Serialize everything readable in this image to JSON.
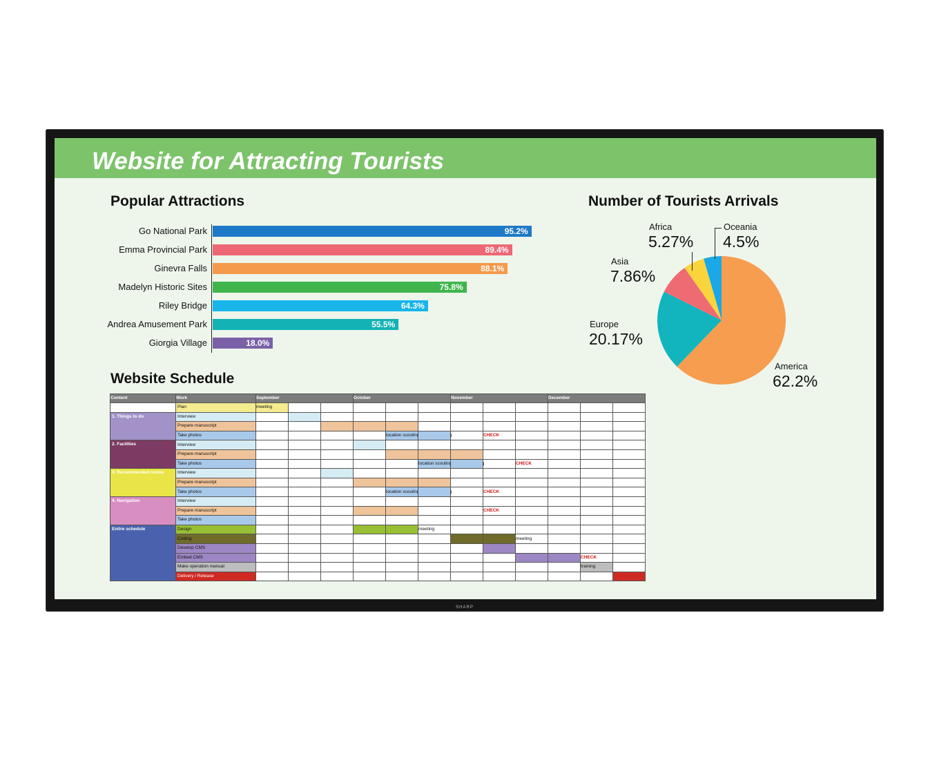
{
  "title": "Website for Attracting Tourists",
  "device_brand": "SHARP",
  "colors": {
    "title_bar": "#7cc36a",
    "screen_bg": "#eef6ec",
    "bezel": "#151515"
  },
  "attractions": {
    "title": "Popular Attractions",
    "chart_data": {
      "type": "bar",
      "orientation": "horizontal",
      "categories": [
        "Go National Park",
        "Emma Provincial Park",
        "Ginevra Falls",
        "Madelyn Historic Sites",
        "Riley Bridge",
        "Andrea Amusement Park",
        "Giorgia Village"
      ],
      "values": [
        95.2,
        89.4,
        88.1,
        75.8,
        64.3,
        55.5,
        18.0
      ],
      "value_labels": [
        "95.2%",
        "89.4%",
        "88.1%",
        "75.8%",
        "64.3%",
        "55.5%",
        "18.0%"
      ],
      "colors": [
        "#1e79c8",
        "#ee6775",
        "#f5994b",
        "#3fb54c",
        "#17b5ea",
        "#13b2b5",
        "#7b60a8"
      ],
      "xlim": [
        0,
        100
      ],
      "title": "Popular Attractions"
    }
  },
  "arrivals": {
    "title": "Number of Tourists Arrivals",
    "chart_data": {
      "type": "pie",
      "title": "Number of Tourists Arrivals",
      "labels": [
        "America",
        "Europe",
        "Asia",
        "Africa",
        "Oceania"
      ],
      "values": [
        62.2,
        20.17,
        7.86,
        5.27,
        4.5
      ],
      "value_labels": [
        "62.2%",
        "20.17%",
        "7.86%",
        "5.27%",
        "4.5%"
      ],
      "colors": [
        "#f79d4f",
        "#12b4bd",
        "#ee6b73",
        "#fad43c",
        "#1aa8e8"
      ]
    }
  },
  "schedule": {
    "title": "Website Schedule",
    "headers": {
      "content": "Content",
      "work": "Work",
      "months": [
        "September",
        "October",
        "November",
        "December"
      ]
    },
    "weeks_per_month": 3,
    "sections": [
      {
        "name": "",
        "color": "#ffffff",
        "rows": [
          {
            "work": "Plan",
            "color": "#f4ec8f",
            "bars": [
              {
                "start": 0,
                "end": 0,
                "color": "#f4ec8f"
              }
            ],
            "notes": [
              {
                "col": 0,
                "text": "meeting",
                "style": "normal"
              }
            ]
          }
        ]
      },
      {
        "name": "1. Things to do",
        "color": "#a292c8",
        "rows": [
          {
            "work": "Interview",
            "color": "#d6ecf4",
            "bars": [
              {
                "start": 1,
                "end": 1,
                "color": "#d6ecf4"
              }
            ],
            "notes": []
          },
          {
            "work": "Prepare manuscript",
            "color": "#f0c49a",
            "bars": [
              {
                "start": 2,
                "end": 4,
                "color": "#f0c49a"
              }
            ],
            "notes": []
          },
          {
            "work": "Take photos",
            "color": "#a9c9ea",
            "bars": [
              {
                "start": 4,
                "end": 5,
                "color": "#a9c9ea"
              }
            ],
            "notes": [
              {
                "col": 4,
                "text": "location scouting / photographing",
                "style": "normal"
              },
              {
                "col": 7,
                "text": "CHECK",
                "style": "check"
              }
            ]
          }
        ]
      },
      {
        "name": "2. Facilities",
        "color": "#7d3a63",
        "rows": [
          {
            "work": "Interview",
            "color": "#d6ecf4",
            "bars": [
              {
                "start": 3,
                "end": 3,
                "color": "#d6ecf4"
              }
            ],
            "notes": []
          },
          {
            "work": "Prepare manuscript",
            "color": "#f0c49a",
            "bars": [
              {
                "start": 4,
                "end": 6,
                "color": "#f0c49a"
              }
            ],
            "notes": []
          },
          {
            "work": "Take photos",
            "color": "#a9c9ea",
            "bars": [
              {
                "start": 5,
                "end": 6,
                "color": "#a9c9ea"
              }
            ],
            "notes": [
              {
                "col": 5,
                "text": "location scouting / photographing",
                "style": "normal"
              },
              {
                "col": 8,
                "text": "CHECK",
                "style": "check"
              }
            ]
          }
        ]
      },
      {
        "name": "3. Recommended routes",
        "color": "#e9e447",
        "rows": [
          {
            "work": "Interview",
            "color": "#d6ecf4",
            "bars": [
              {
                "start": 2,
                "end": 2,
                "color": "#d6ecf4"
              }
            ],
            "notes": []
          },
          {
            "work": "Prepare manuscript",
            "color": "#f0c49a",
            "bars": [
              {
                "start": 3,
                "end": 5,
                "color": "#f0c49a"
              }
            ],
            "notes": []
          },
          {
            "work": "Take photos",
            "color": "#a9c9ea",
            "bars": [
              {
                "start": 4,
                "end": 5,
                "color": "#a9c9ea"
              }
            ],
            "notes": [
              {
                "col": 4,
                "text": "location scouting / photographing",
                "style": "normal"
              },
              {
                "col": 7,
                "text": "CHECK",
                "style": "check"
              }
            ]
          }
        ]
      },
      {
        "name": "4. Navigation",
        "color": "#d98ec2",
        "rows": [
          {
            "work": "Interview",
            "color": "#d6ecf4",
            "bars": [],
            "notes": []
          },
          {
            "work": "Prepare manuscript",
            "color": "#f0c49a",
            "bars": [
              {
                "start": 3,
                "end": 4,
                "color": "#f0c49a"
              }
            ],
            "notes": [
              {
                "col": 7,
                "text": "CHECK",
                "style": "check"
              }
            ]
          },
          {
            "work": "Take photos",
            "color": "#a9c9ea",
            "bars": [],
            "notes": []
          }
        ]
      },
      {
        "name": "Entire schedule",
        "color": "#4a62ad",
        "rows": [
          {
            "work": "Design",
            "color": "#98bf34",
            "bars": [
              {
                "start": 3,
                "end": 4,
                "color": "#98bf34"
              }
            ],
            "notes": [
              {
                "col": 5,
                "text": "meeting",
                "style": "normal"
              }
            ]
          },
          {
            "work": "Coding",
            "color": "#6f6b2b",
            "bars": [
              {
                "start": 6,
                "end": 7,
                "color": "#6f6b2b"
              }
            ],
            "notes": [
              {
                "col": 8,
                "text": "meeting",
                "style": "normal"
              }
            ]
          },
          {
            "work": "Develop CMS",
            "color": "#9c87c4",
            "bars": [
              {
                "start": 7,
                "end": 7,
                "color": "#9c87c4"
              }
            ],
            "notes": []
          },
          {
            "work": "Embed CMS",
            "color": "#9c87c4",
            "bars": [
              {
                "start": 8,
                "end": 9,
                "color": "#9c87c4"
              }
            ],
            "notes": [
              {
                "col": 10,
                "text": "CHECK",
                "style": "check"
              }
            ]
          },
          {
            "work": "Make operation manual",
            "color": "#bdbdbd",
            "bars": [
              {
                "start": 10,
                "end": 10,
                "color": "#bdbdbd"
              }
            ],
            "notes": [
              {
                "col": 10,
                "text": "training",
                "style": "normal"
              }
            ]
          },
          {
            "work": "Delivery / Release",
            "color": "#cf2a22",
            "text_color": "#ffffff",
            "bars": [
              {
                "start": 11,
                "end": 11,
                "color": "#cf2a22"
              }
            ],
            "notes": []
          }
        ]
      }
    ]
  }
}
